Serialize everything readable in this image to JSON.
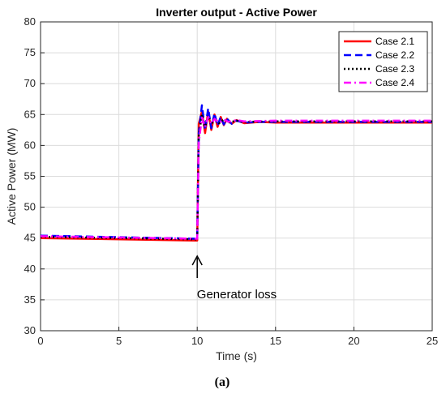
{
  "chart_data": {
    "type": "line",
    "title": "Inverter output - Active Power",
    "xlabel": "Time (s)",
    "ylabel": "Active Power (MW)",
    "xlim": [
      0,
      25
    ],
    "ylim": [
      30,
      80
    ],
    "xticks": [
      0,
      5,
      10,
      15,
      20,
      25
    ],
    "yticks": [
      30,
      35,
      40,
      45,
      50,
      55,
      60,
      65,
      70,
      75,
      80
    ],
    "grid": true,
    "legend_position": "top-right",
    "series": [
      {
        "name": "Case 2.1",
        "color": "#ff0000",
        "style": "solid",
        "x": [
          0,
          9.9,
          10.0,
          10.1,
          10.3,
          10.5,
          10.7,
          10.9,
          11.1,
          11.3,
          11.5,
          11.7,
          11.9,
          12.2,
          12.5,
          13,
          14,
          15,
          20,
          25
        ],
        "y": [
          45.0,
          44.6,
          44.6,
          63.5,
          65.5,
          62.0,
          65.5,
          62.5,
          65.0,
          63.0,
          64.6,
          63.3,
          64.3,
          63.5,
          64.1,
          63.6,
          63.8,
          63.7,
          63.7,
          63.7
        ]
      },
      {
        "name": "Case 2.2",
        "color": "#0000ff",
        "style": "dashed",
        "x": [
          0,
          9.9,
          10.0,
          10.1,
          10.3,
          10.5,
          10.7,
          10.9,
          11.1,
          11.3,
          11.5,
          11.7,
          11.9,
          12.2,
          12.5,
          13,
          14,
          15,
          20,
          25
        ],
        "y": [
          45.4,
          44.9,
          44.9,
          62.0,
          66.5,
          62.5,
          66.0,
          62.8,
          65.2,
          63.2,
          64.6,
          63.4,
          64.3,
          63.5,
          64.0,
          63.7,
          63.8,
          63.8,
          63.8,
          63.8
        ]
      },
      {
        "name": "Case 2.3",
        "color": "#000000",
        "style": "dotted",
        "x": [
          0,
          9.9,
          10.0,
          10.1,
          10.3,
          10.5,
          10.7,
          10.9,
          11.1,
          11.4,
          11.7,
          12,
          12.5,
          13,
          15,
          20,
          25
        ],
        "y": [
          45.2,
          44.8,
          44.8,
          61.5,
          65.0,
          63.0,
          64.8,
          63.4,
          64.4,
          63.6,
          64.2,
          63.7,
          64.0,
          63.8,
          63.9,
          63.9,
          63.9
        ]
      },
      {
        "name": "Case 2.4",
        "color": "#ff00ff",
        "style": "dashdot",
        "x": [
          0,
          9.9,
          10.0,
          10.1,
          10.3,
          10.5,
          10.7,
          10.9,
          11.1,
          11.4,
          11.7,
          12,
          12.5,
          13,
          15,
          20,
          25
        ],
        "y": [
          45.3,
          44.9,
          44.9,
          60.5,
          64.5,
          63.0,
          64.6,
          63.5,
          64.3,
          63.7,
          64.2,
          63.8,
          64.1,
          63.9,
          64.0,
          64.0,
          64.0
        ]
      }
    ],
    "annotations": [
      {
        "text": "Generator loss",
        "x": 10,
        "y": 44.5
      }
    ]
  },
  "caption": "(a)"
}
